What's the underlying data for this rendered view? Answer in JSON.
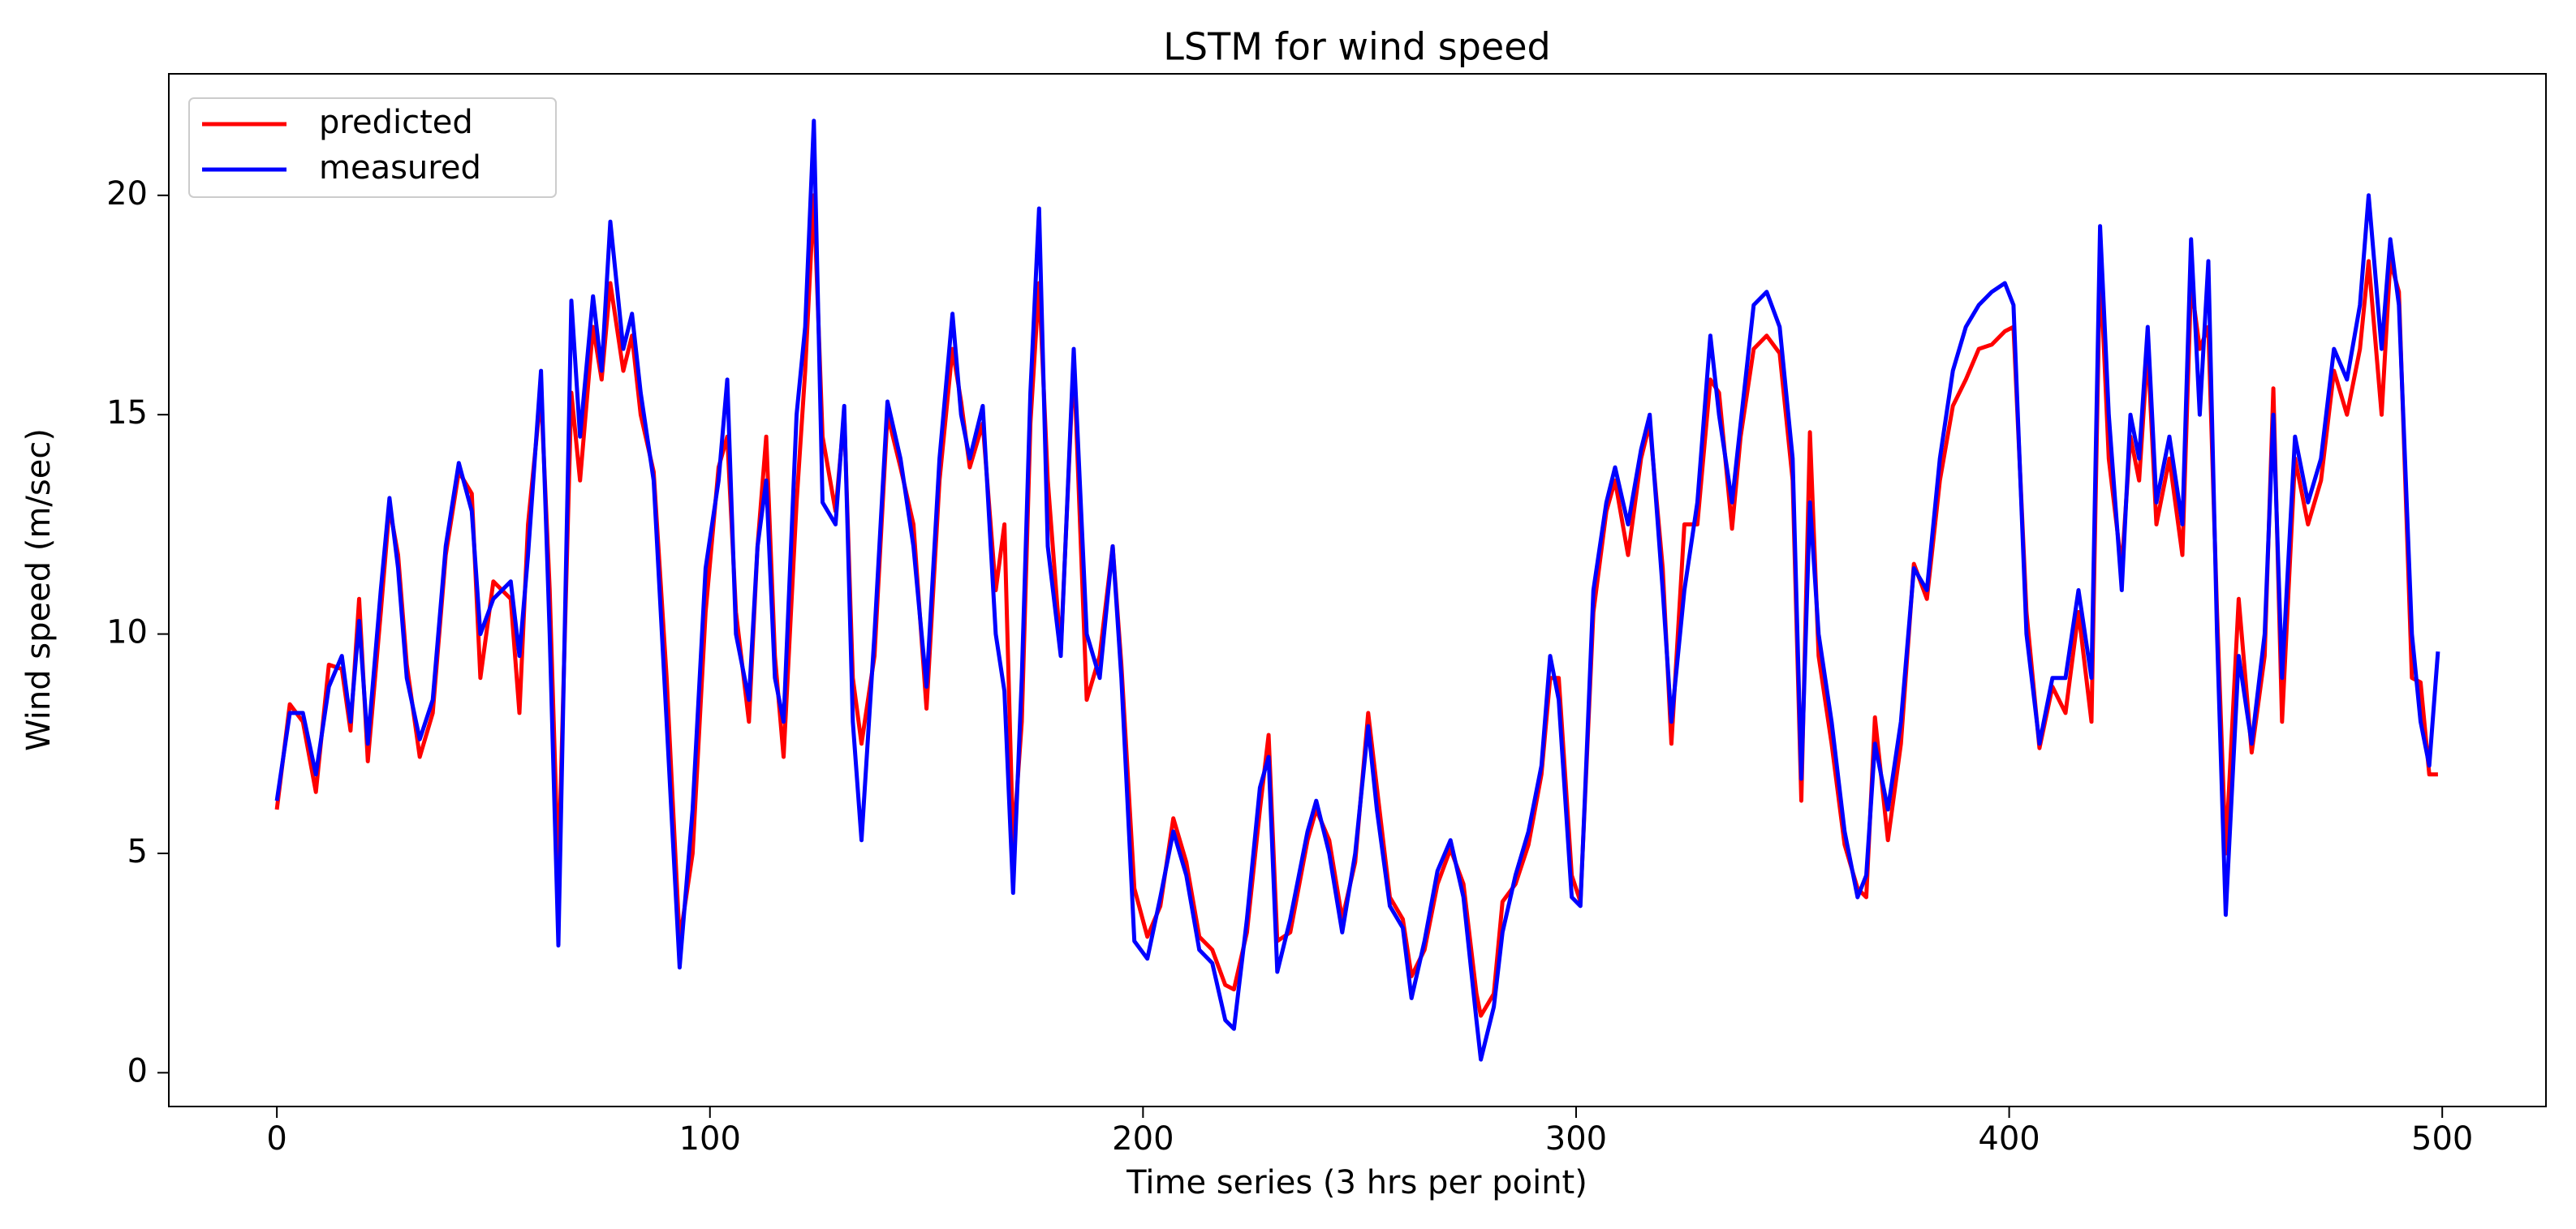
{
  "chart_data": {
    "type": "line",
    "title": "LSTM for wind speed",
    "x_label": "Time series (3 hrs per point)",
    "y_label": "Wind speed (m/sec)",
    "xlim": [
      -24.95,
      523.95
    ],
    "xticks": [
      0,
      100,
      200,
      300,
      400,
      500
    ],
    "ylim": [
      -0.77,
      22.77
    ],
    "yticks": [
      0,
      5,
      10,
      15,
      20
    ],
    "legend": "upper left",
    "x": [
      0,
      3,
      6,
      9,
      12,
      15,
      17,
      19,
      21,
      24,
      26,
      28,
      30,
      33,
      36,
      39,
      42,
      45,
      47,
      50,
      54,
      56,
      58,
      61,
      63,
      65,
      68,
      70,
      73,
      75,
      77,
      80,
      82,
      84,
      87,
      90,
      93,
      96,
      99,
      102,
      104,
      106,
      109,
      111,
      113,
      115,
      117,
      120,
      122,
      124,
      126,
      129,
      131,
      133,
      135,
      138,
      141,
      144,
      147,
      150,
      153,
      156,
      158,
      160,
      163,
      166,
      168,
      170,
      172,
      174,
      176,
      178,
      181,
      184,
      187,
      190,
      193,
      195,
      198,
      201,
      204,
      207,
      210,
      213,
      216,
      219,
      221,
      224,
      227,
      229,
      231,
      234,
      238,
      240,
      243,
      246,
      249,
      252,
      254,
      257,
      260,
      262,
      265,
      268,
      271,
      274,
      277,
      278,
      281,
      283,
      286,
      289,
      292,
      294,
      296,
      299,
      301,
      304,
      307,
      309,
      312,
      315,
      317,
      320,
      322,
      325,
      328,
      331,
      333,
      336,
      338,
      341,
      344,
      347,
      350,
      352,
      354,
      356,
      359,
      362,
      365,
      367,
      369,
      372,
      375,
      378,
      381,
      384,
      387,
      390,
      393,
      396,
      399,
      401,
      404,
      407,
      410,
      413,
      416,
      419,
      421,
      423,
      426,
      428,
      430,
      432,
      434,
      437,
      440,
      442,
      444,
      446,
      448,
      450,
      453,
      456,
      459,
      461,
      463,
      466,
      469,
      472,
      475,
      478,
      481,
      483,
      486,
      488,
      490,
      493,
      495,
      497,
      499
    ],
    "series": [
      {
        "name": "predicted",
        "color": "#ff0000",
        "values": [
          6.0,
          8.4,
          8.0,
          6.4,
          9.3,
          9.2,
          7.8,
          10.8,
          7.1,
          10.5,
          12.9,
          11.8,
          9.3,
          7.2,
          8.2,
          11.8,
          13.7,
          13.2,
          9.0,
          11.2,
          10.8,
          8.2,
          12.5,
          15.5,
          11,
          4.5,
          15.5,
          13.5,
          17,
          15.8,
          18,
          16,
          16.8,
          15,
          13.7,
          9,
          3,
          5,
          10.5,
          13.8,
          14.5,
          10.5,
          8,
          12,
          14.5,
          9.5,
          7.2,
          13,
          16,
          20,
          14.5,
          12.8,
          15,
          9,
          7.5,
          9.5,
          15,
          13.8,
          12.5,
          8.3,
          13.5,
          16.5,
          15.3,
          13.8,
          14.8,
          11,
          12.5,
          5.2,
          8,
          14.8,
          18,
          13.5,
          9.6,
          16.3,
          8.5,
          9.5,
          12,
          9.3,
          4.2,
          3.1,
          3.8,
          5.8,
          4.8,
          3.1,
          2.8,
          2.0,
          1.9,
          3.2,
          6.0,
          7.7,
          3,
          3.2,
          5.3,
          6.0,
          5.3,
          3.5,
          4.8,
          8.2,
          6.5,
          4,
          3.5,
          2.2,
          2.8,
          4.3,
          5.1,
          4.3,
          1.8,
          1.3,
          1.8,
          3.9,
          4.3,
          5.2,
          6.8,
          9,
          9,
          4.5,
          3.9,
          10.5,
          12.8,
          13.5,
          11.8,
          14,
          14.8,
          11.5,
          7.5,
          12.5,
          12.5,
          15.8,
          15.5,
          12.4,
          14.5,
          16.5,
          16.8,
          16.4,
          13.5,
          6.2,
          14.6,
          9.5,
          7.5,
          5.2,
          4.2,
          4.0,
          8.1,
          5.3,
          7.5,
          11.6,
          10.8,
          13.5,
          15.2,
          15.8,
          16.5,
          16.6,
          16.9,
          17,
          10.5,
          7.4,
          8.8,
          8.2,
          10.5,
          8,
          18.5,
          14,
          11.5,
          14.5,
          13.5,
          16.5,
          12.5,
          14,
          11.8,
          18,
          16.5,
          17,
          10.5,
          5,
          10.8,
          7.3,
          9.5,
          15.6,
          8,
          14,
          12.5,
          13.5,
          16,
          15,
          16.5,
          18.5,
          15,
          18.5,
          17.8,
          9,
          8.9,
          6.8,
          6.8
        ]
      },
      {
        "name": "measured",
        "color": "#0000ff",
        "values": [
          6.2,
          8.2,
          8.2,
          6.8,
          8.8,
          9.5,
          8,
          10.3,
          7.5,
          11,
          13.1,
          11.5,
          9,
          7.6,
          8.5,
          12,
          13.9,
          12.8,
          10,
          10.8,
          11.2,
          9.5,
          11.8,
          16,
          10,
          2.9,
          17.6,
          14.5,
          17.7,
          16,
          19.4,
          16.5,
          17.3,
          15.5,
          13.5,
          8,
          2.4,
          6,
          11.5,
          13.5,
          15.8,
          10,
          8.5,
          12,
          13.5,
          9,
          8,
          15,
          17,
          21.7,
          13,
          12.5,
          15.2,
          8,
          5.3,
          10,
          15.3,
          14,
          12,
          8.8,
          14,
          17.3,
          15,
          14,
          15.2,
          10,
          8.7,
          4.1,
          9,
          15.5,
          19.7,
          12,
          9.5,
          16.5,
          10,
          9,
          12,
          9,
          3,
          2.6,
          4,
          5.5,
          4.5,
          2.8,
          2.5,
          1.2,
          1.0,
          3.5,
          6.5,
          7.2,
          2.3,
          3.5,
          5.5,
          6.2,
          5,
          3.2,
          5,
          7.9,
          6,
          3.8,
          3.3,
          1.7,
          3,
          4.6,
          5.3,
          4,
          1.2,
          0.3,
          1.5,
          3.2,
          4.5,
          5.5,
          7,
          9.5,
          8.5,
          4,
          3.8,
          11,
          13,
          13.8,
          12.5,
          14.2,
          15,
          11,
          8,
          11,
          13,
          16.8,
          15,
          13,
          14.8,
          17.5,
          17.8,
          17,
          14,
          6.7,
          13,
          10,
          8,
          5.5,
          4,
          4.5,
          7.5,
          6,
          8,
          11.5,
          11,
          14,
          16,
          17,
          17.5,
          17.8,
          18,
          17.5,
          10,
          7.5,
          9,
          9,
          11,
          9,
          19.3,
          15,
          11,
          15,
          14,
          17,
          13,
          14.5,
          12.5,
          19,
          15,
          18.5,
          10,
          3.6,
          9.5,
          7.5,
          10,
          15,
          9,
          14.5,
          13,
          14,
          16.5,
          15.8,
          17.5,
          20,
          16.5,
          19,
          17.5,
          10,
          8,
          7,
          9.6
        ]
      }
    ]
  }
}
